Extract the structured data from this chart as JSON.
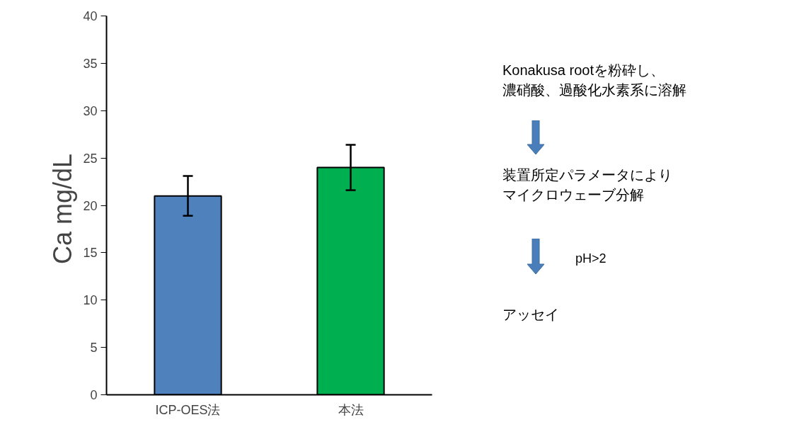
{
  "chart_data": {
    "type": "bar",
    "ylabel": "Ca  mg/dL",
    "categories": [
      "ICP-OES法",
      "本法"
    ],
    "values": [
      21,
      24
    ],
    "colors": [
      "#4f81bd",
      "#00b050"
    ],
    "errors": [
      2.1,
      2.4
    ],
    "ylim": [
      0,
      40
    ],
    "yticks": [
      0,
      5,
      10,
      15,
      20,
      25,
      30,
      35,
      40
    ],
    "grid": false,
    "annotations": [
      "Konakusa rootを粉砕し、",
      "濃硝酸、過酸化水素系に溶解",
      "装置所定パラメータにより",
      "マイクロウェーブ分解",
      "pH>2",
      "アッセイ"
    ]
  }
}
